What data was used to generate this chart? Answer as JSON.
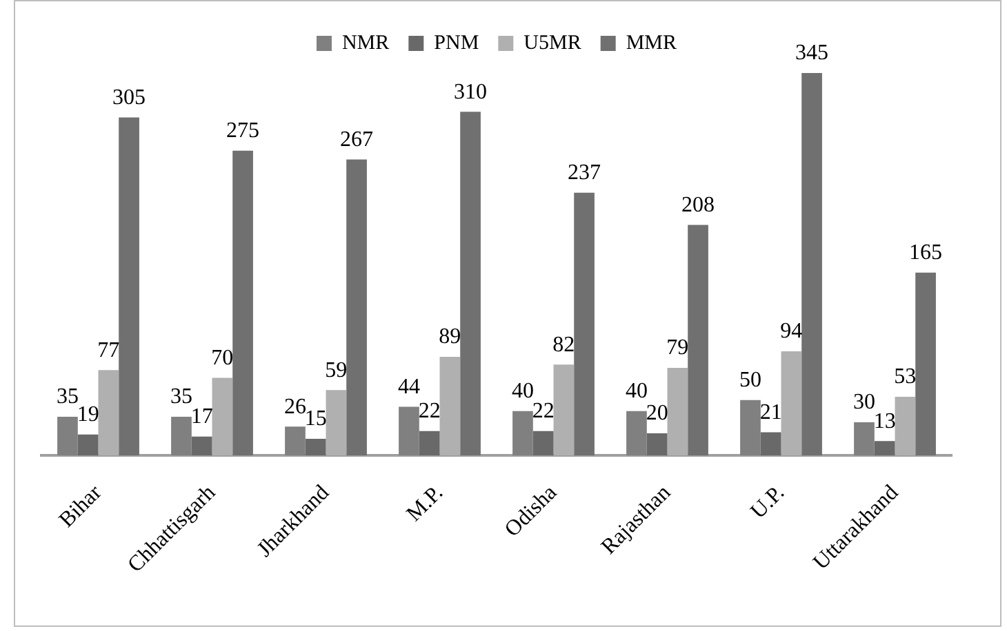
{
  "chart_data": {
    "type": "bar",
    "categories": [
      "Bihar",
      "Chhattisgarh",
      "Jharkhand",
      "M.P.",
      "Odisha",
      "Rajasthan",
      "U.P.",
      "Uttarakhand"
    ],
    "series": [
      {
        "name": "NMR",
        "color": "#808080",
        "values": [
          35,
          35,
          26,
          44,
          40,
          40,
          50,
          30
        ]
      },
      {
        "name": "PNM",
        "color": "#696969",
        "values": [
          19,
          17,
          15,
          22,
          22,
          20,
          21,
          13
        ]
      },
      {
        "name": "U5MR",
        "color": "#b0b0b0",
        "values": [
          77,
          70,
          59,
          89,
          82,
          79,
          94,
          53
        ]
      },
      {
        "name": "MMR",
        "color": "#707070",
        "values": [
          305,
          275,
          267,
          310,
          237,
          208,
          345,
          165
        ]
      }
    ],
    "legend": "top",
    "grid": false,
    "data_labels": true,
    "tick_labels": "x"
  }
}
